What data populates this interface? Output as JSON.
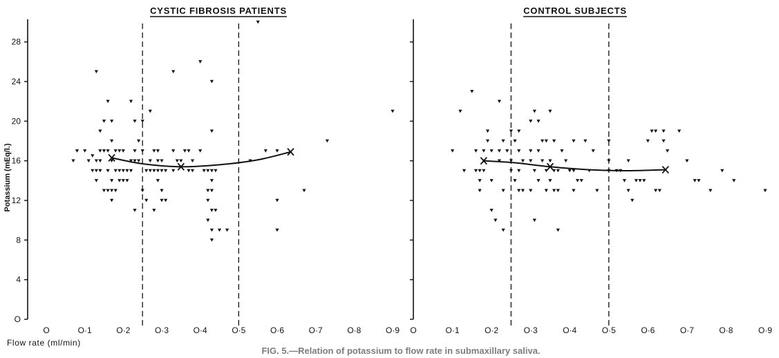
{
  "caption": "FIG. 5.—Relation of potassium to flow rate in submaxillary saliva.",
  "chart_data": [
    {
      "type": "scatter",
      "title": "CYSTIC FIBROSIS PATIENTS",
      "xlabel": "Flow rate (ml/min)",
      "ylabel": "Potassium (mEq/l.)",
      "xlim": [
        0,
        0.9
      ],
      "ylim": [
        0,
        30
      ],
      "x_ticks": [
        "O",
        "O·1",
        "O·2",
        "O·3",
        "O·4",
        "O·5",
        "O·6",
        "O·7",
        "O·8",
        "O·9"
      ],
      "y_ticks": [
        "O",
        "4",
        "8",
        "12",
        "16",
        "20",
        "24",
        "28"
      ],
      "grid": false,
      "dashed_vlines": [
        0.25,
        0.5
      ],
      "points": [
        [
          0.07,
          16
        ],
        [
          0.08,
          17
        ],
        [
          0.1,
          17
        ],
        [
          0.11,
          16
        ],
        [
          0.12,
          15
        ],
        [
          0.12,
          16.5
        ],
        [
          0.13,
          25
        ],
        [
          0.13,
          16
        ],
        [
          0.13,
          15
        ],
        [
          0.13,
          14
        ],
        [
          0.14,
          19
        ],
        [
          0.14,
          17
        ],
        [
          0.14,
          16
        ],
        [
          0.14,
          15
        ],
        [
          0.15,
          20
        ],
        [
          0.15,
          17
        ],
        [
          0.15,
          13
        ],
        [
          0.16,
          22
        ],
        [
          0.16,
          17
        ],
        [
          0.16,
          15
        ],
        [
          0.16,
          13
        ],
        [
          0.17,
          20
        ],
        [
          0.17,
          18
        ],
        [
          0.17,
          16
        ],
        [
          0.17,
          14
        ],
        [
          0.17,
          13
        ],
        [
          0.17,
          12
        ],
        [
          0.18,
          17
        ],
        [
          0.18,
          15
        ],
        [
          0.18,
          13
        ],
        [
          0.19,
          17
        ],
        [
          0.19,
          15
        ],
        [
          0.19,
          14
        ],
        [
          0.2,
          17
        ],
        [
          0.2,
          15
        ],
        [
          0.2,
          14
        ],
        [
          0.21,
          15
        ],
        [
          0.21,
          14
        ],
        [
          0.22,
          22
        ],
        [
          0.22,
          16
        ],
        [
          0.22,
          15
        ],
        [
          0.23,
          20
        ],
        [
          0.23,
          17
        ],
        [
          0.23,
          16
        ],
        [
          0.23,
          11
        ],
        [
          0.24,
          18
        ],
        [
          0.24,
          16
        ],
        [
          0.25,
          17
        ],
        [
          0.25,
          20
        ],
        [
          0.25,
          13
        ],
        [
          0.26,
          15
        ],
        [
          0.26,
          12
        ],
        [
          0.27,
          21
        ],
        [
          0.27,
          16
        ],
        [
          0.27,
          15
        ],
        [
          0.28,
          17
        ],
        [
          0.28,
          15
        ],
        [
          0.28,
          11
        ],
        [
          0.29,
          17
        ],
        [
          0.29,
          16
        ],
        [
          0.29,
          15
        ],
        [
          0.29,
          14
        ],
        [
          0.3,
          16
        ],
        [
          0.3,
          15
        ],
        [
          0.3,
          13
        ],
        [
          0.3,
          12
        ],
        [
          0.31,
          15
        ],
        [
          0.31,
          12
        ],
        [
          0.33,
          25
        ],
        [
          0.33,
          17
        ],
        [
          0.33,
          15
        ],
        [
          0.34,
          16
        ],
        [
          0.35,
          16
        ],
        [
          0.36,
          17
        ],
        [
          0.37,
          17
        ],
        [
          0.37,
          15
        ],
        [
          0.38,
          16
        ],
        [
          0.38,
          15
        ],
        [
          0.4,
          26
        ],
        [
          0.4,
          17
        ],
        [
          0.41,
          15
        ],
        [
          0.42,
          15
        ],
        [
          0.42,
          13
        ],
        [
          0.42,
          12
        ],
        [
          0.42,
          10
        ],
        [
          0.43,
          24
        ],
        [
          0.43,
          19
        ],
        [
          0.43,
          15
        ],
        [
          0.43,
          14
        ],
        [
          0.43,
          13
        ],
        [
          0.43,
          11
        ],
        [
          0.43,
          9
        ],
        [
          0.43,
          8
        ],
        [
          0.44,
          15
        ],
        [
          0.44,
          11
        ],
        [
          0.45,
          9
        ],
        [
          0.47,
          9
        ],
        [
          0.53,
          16
        ],
        [
          0.55,
          30
        ],
        [
          0.57,
          17
        ],
        [
          0.6,
          17
        ],
        [
          0.6,
          12
        ],
        [
          0.6,
          9
        ],
        [
          0.67,
          13
        ],
        [
          0.73,
          18
        ],
        [
          0.9,
          21
        ]
      ],
      "curve": [
        [
          0.17,
          16.3
        ],
        [
          0.25,
          15.7
        ],
        [
          0.35,
          15.4
        ],
        [
          0.45,
          15.6
        ],
        [
          0.55,
          16.1
        ],
        [
          0.635,
          16.9
        ]
      ],
      "means": [
        [
          0.17,
          16.3
        ],
        [
          0.35,
          15.4
        ],
        [
          0.635,
          16.9
        ]
      ]
    },
    {
      "type": "scatter",
      "title": "CONTROL SUBJECTS",
      "xlabel": "",
      "ylabel": "",
      "xlim": [
        0,
        0.9
      ],
      "ylim": [
        0,
        30
      ],
      "x_ticks": [
        "O",
        "O·1",
        "O·2",
        "O·3",
        "O·4",
        "O·5",
        "O·6",
        "O·7",
        "O·8",
        "O·9"
      ],
      "y_ticks": [],
      "grid": false,
      "dashed_vlines": [
        0.25,
        0.5
      ],
      "points": [
        [
          0.1,
          17
        ],
        [
          0.12,
          21
        ],
        [
          0.13,
          15
        ],
        [
          0.15,
          23
        ],
        [
          0.16,
          17
        ],
        [
          0.16,
          15
        ],
        [
          0.17,
          14
        ],
        [
          0.17,
          13
        ],
        [
          0.17,
          15
        ],
        [
          0.18,
          17
        ],
        [
          0.18,
          16
        ],
        [
          0.18,
          15
        ],
        [
          0.19,
          19
        ],
        [
          0.19,
          18
        ],
        [
          0.2,
          17
        ],
        [
          0.2,
          14
        ],
        [
          0.2,
          11
        ],
        [
          0.21,
          10
        ],
        [
          0.22,
          22
        ],
        [
          0.22,
          17
        ],
        [
          0.22,
          16
        ],
        [
          0.23,
          18
        ],
        [
          0.23,
          13
        ],
        [
          0.23,
          9
        ],
        [
          0.24,
          17
        ],
        [
          0.25,
          19
        ],
        [
          0.25,
          16
        ],
        [
          0.25,
          15
        ],
        [
          0.26,
          18
        ],
        [
          0.26,
          14
        ],
        [
          0.27,
          19
        ],
        [
          0.27,
          17
        ],
        [
          0.27,
          15
        ],
        [
          0.27,
          13
        ],
        [
          0.28,
          16
        ],
        [
          0.28,
          13
        ],
        [
          0.3,
          20
        ],
        [
          0.3,
          17
        ],
        [
          0.3,
          16
        ],
        [
          0.3,
          13
        ],
        [
          0.31,
          21
        ],
        [
          0.31,
          15
        ],
        [
          0.31,
          10
        ],
        [
          0.32,
          20
        ],
        [
          0.32,
          17
        ],
        [
          0.32,
          14
        ],
        [
          0.33,
          18
        ],
        [
          0.33,
          16
        ],
        [
          0.34,
          18
        ],
        [
          0.34,
          15
        ],
        [
          0.34,
          13
        ],
        [
          0.35,
          21
        ],
        [
          0.35,
          16
        ],
        [
          0.35,
          14
        ],
        [
          0.36,
          18
        ],
        [
          0.36,
          15
        ],
        [
          0.36,
          13
        ],
        [
          0.37,
          15
        ],
        [
          0.37,
          13
        ],
        [
          0.37,
          9
        ],
        [
          0.38,
          17
        ],
        [
          0.39,
          16
        ],
        [
          0.4,
          15
        ],
        [
          0.41,
          18
        ],
        [
          0.41,
          15
        ],
        [
          0.41,
          13
        ],
        [
          0.42,
          14
        ],
        [
          0.43,
          14
        ],
        [
          0.44,
          18
        ],
        [
          0.45,
          15
        ],
        [
          0.46,
          17
        ],
        [
          0.47,
          13
        ],
        [
          0.5,
          18
        ],
        [
          0.5,
          16
        ],
        [
          0.5,
          15
        ],
        [
          0.52,
          15
        ],
        [
          0.53,
          15
        ],
        [
          0.54,
          14
        ],
        [
          0.55,
          13
        ],
        [
          0.55,
          16
        ],
        [
          0.56,
          12
        ],
        [
          0.57,
          14
        ],
        [
          0.58,
          14
        ],
        [
          0.59,
          14
        ],
        [
          0.6,
          18
        ],
        [
          0.61,
          19
        ],
        [
          0.62,
          19
        ],
        [
          0.62,
          13
        ],
        [
          0.63,
          13
        ],
        [
          0.64,
          18
        ],
        [
          0.64,
          19
        ],
        [
          0.65,
          17
        ],
        [
          0.68,
          19
        ],
        [
          0.7,
          16
        ],
        [
          0.72,
          14
        ],
        [
          0.73,
          14
        ],
        [
          0.76,
          13
        ],
        [
          0.79,
          15
        ],
        [
          0.82,
          14
        ],
        [
          0.9,
          13
        ]
      ],
      "curve": [
        [
          0.18,
          16.0
        ],
        [
          0.26,
          15.8
        ],
        [
          0.35,
          15.4
        ],
        [
          0.45,
          15.1
        ],
        [
          0.55,
          15.0
        ],
        [
          0.645,
          15.1
        ]
      ],
      "means": [
        [
          0.18,
          16.0
        ],
        [
          0.35,
          15.4
        ],
        [
          0.645,
          15.1
        ]
      ]
    }
  ]
}
